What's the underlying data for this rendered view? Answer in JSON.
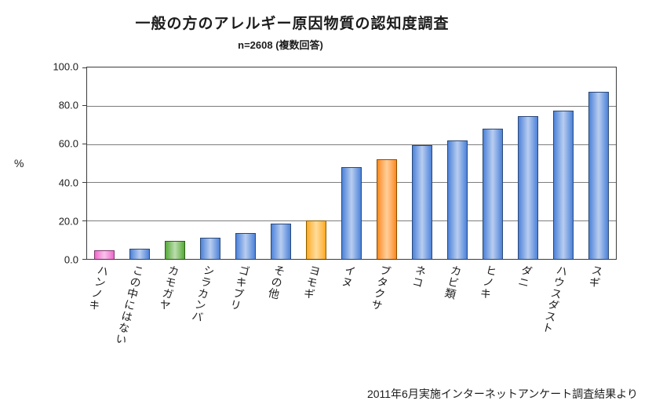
{
  "chart_data": {
    "type": "bar",
    "title": "一般の方のアレルギー原因物質の認知度調査",
    "subtitle": "n=2608 (複数回答)",
    "source_note": "2011年6月実施インターネットアンケート調査結果より",
    "ylabel": "%",
    "ylim": [
      0,
      100
    ],
    "yticks": [
      100.0,
      80.0,
      60.0,
      40.0,
      20.0,
      0.0
    ],
    "grid": true,
    "legend": false,
    "categories": [
      "ハンノキ",
      "この中にはない",
      "カモガヤ",
      "シラカンバ",
      "ゴキブリ",
      "その他",
      "ヨモギ",
      "イヌ",
      "ブタクサ",
      "ネコ",
      "カビ類",
      "ヒノキ",
      "ダニ",
      "ハウスダスト",
      "スギ"
    ],
    "values": [
      4.5,
      5.5,
      9.5,
      11,
      13.5,
      18.5,
      20,
      48,
      52,
      59.5,
      62,
      68,
      74.5,
      77.5,
      87.5
    ],
    "bar_colors": [
      "#ee66cc",
      "#4e82d8",
      "#55aa33",
      "#4e82d8",
      "#4e82d8",
      "#4e82d8",
      "#ffaa00",
      "#4e82d8",
      "#ff8800",
      "#4e82d8",
      "#4e82d8",
      "#4e82d8",
      "#4e82d8",
      "#4e82d8",
      "#4e82d8"
    ]
  },
  "colors": {
    "blue_bar": "#4e82d8",
    "pink_bar": "#ee66cc",
    "green_bar": "#55aa33",
    "yellow_bar": "#ffaa00",
    "orange_bar": "#ff8800",
    "plot_border": "#3c3c3c",
    "gridline": "#7d7d7d",
    "text": "#1c1c1c",
    "background": "#ffffff"
  }
}
